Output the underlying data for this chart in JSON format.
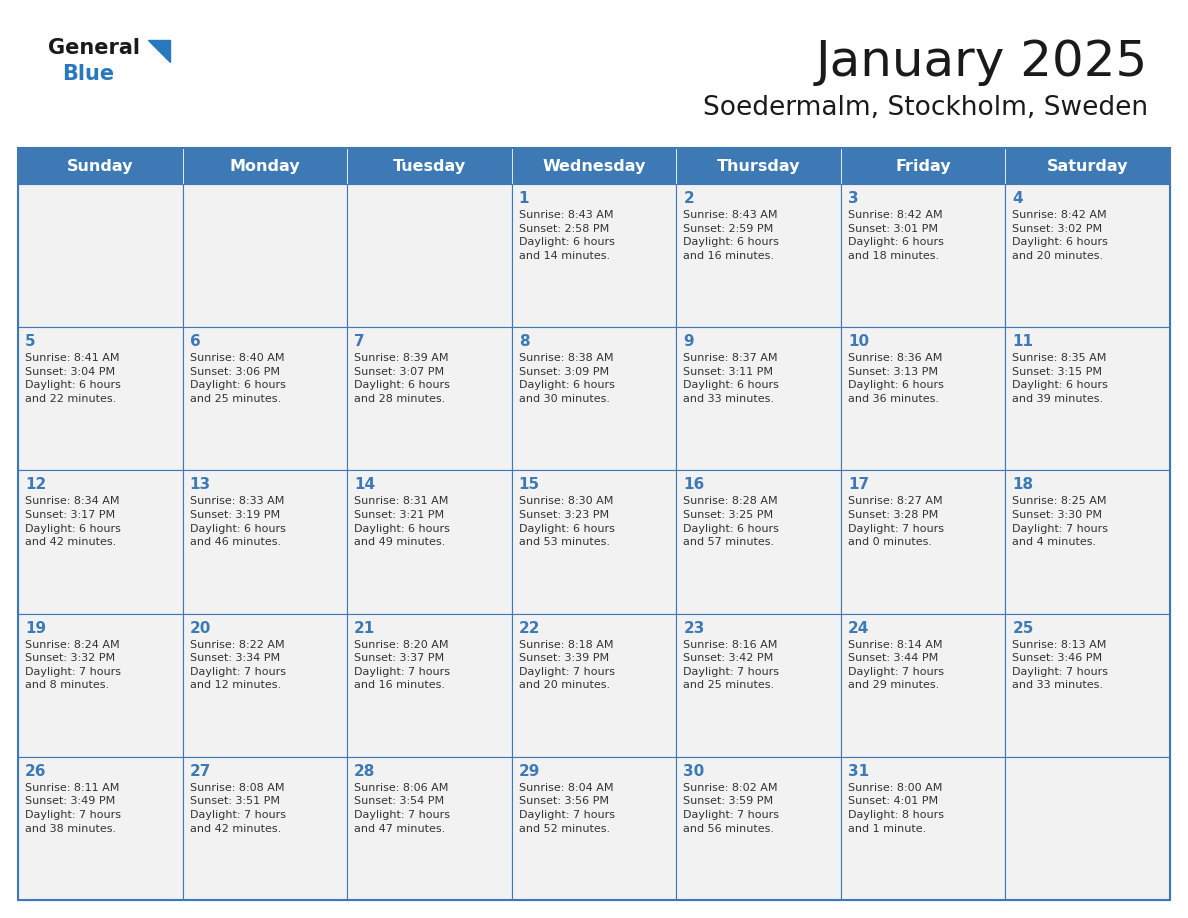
{
  "title": "January 2025",
  "subtitle": "Soedermalm, Stockholm, Sweden",
  "days_of_week": [
    "Sunday",
    "Monday",
    "Tuesday",
    "Wednesday",
    "Thursday",
    "Friday",
    "Saturday"
  ],
  "header_bg": "#3d7ab5",
  "header_text": "#ffffff",
  "cell_bg": "#f2f2f2",
  "grid_line_color": "#3d7ab5",
  "day_number_color": "#3d7ab5",
  "cell_text_color": "#333333",
  "title_color": "#1a1a1a",
  "logo_general_color": "#1a1a1a",
  "logo_blue_color": "#2878be",
  "weeks": [
    {
      "days": [
        {
          "date": null,
          "info": null
        },
        {
          "date": null,
          "info": null
        },
        {
          "date": null,
          "info": null
        },
        {
          "date": 1,
          "info": "Sunrise: 8:43 AM\nSunset: 2:58 PM\nDaylight: 6 hours\nand 14 minutes."
        },
        {
          "date": 2,
          "info": "Sunrise: 8:43 AM\nSunset: 2:59 PM\nDaylight: 6 hours\nand 16 minutes."
        },
        {
          "date": 3,
          "info": "Sunrise: 8:42 AM\nSunset: 3:01 PM\nDaylight: 6 hours\nand 18 minutes."
        },
        {
          "date": 4,
          "info": "Sunrise: 8:42 AM\nSunset: 3:02 PM\nDaylight: 6 hours\nand 20 minutes."
        }
      ]
    },
    {
      "days": [
        {
          "date": 5,
          "info": "Sunrise: 8:41 AM\nSunset: 3:04 PM\nDaylight: 6 hours\nand 22 minutes."
        },
        {
          "date": 6,
          "info": "Sunrise: 8:40 AM\nSunset: 3:06 PM\nDaylight: 6 hours\nand 25 minutes."
        },
        {
          "date": 7,
          "info": "Sunrise: 8:39 AM\nSunset: 3:07 PM\nDaylight: 6 hours\nand 28 minutes."
        },
        {
          "date": 8,
          "info": "Sunrise: 8:38 AM\nSunset: 3:09 PM\nDaylight: 6 hours\nand 30 minutes."
        },
        {
          "date": 9,
          "info": "Sunrise: 8:37 AM\nSunset: 3:11 PM\nDaylight: 6 hours\nand 33 minutes."
        },
        {
          "date": 10,
          "info": "Sunrise: 8:36 AM\nSunset: 3:13 PM\nDaylight: 6 hours\nand 36 minutes."
        },
        {
          "date": 11,
          "info": "Sunrise: 8:35 AM\nSunset: 3:15 PM\nDaylight: 6 hours\nand 39 minutes."
        }
      ]
    },
    {
      "days": [
        {
          "date": 12,
          "info": "Sunrise: 8:34 AM\nSunset: 3:17 PM\nDaylight: 6 hours\nand 42 minutes."
        },
        {
          "date": 13,
          "info": "Sunrise: 8:33 AM\nSunset: 3:19 PM\nDaylight: 6 hours\nand 46 minutes."
        },
        {
          "date": 14,
          "info": "Sunrise: 8:31 AM\nSunset: 3:21 PM\nDaylight: 6 hours\nand 49 minutes."
        },
        {
          "date": 15,
          "info": "Sunrise: 8:30 AM\nSunset: 3:23 PM\nDaylight: 6 hours\nand 53 minutes."
        },
        {
          "date": 16,
          "info": "Sunrise: 8:28 AM\nSunset: 3:25 PM\nDaylight: 6 hours\nand 57 minutes."
        },
        {
          "date": 17,
          "info": "Sunrise: 8:27 AM\nSunset: 3:28 PM\nDaylight: 7 hours\nand 0 minutes."
        },
        {
          "date": 18,
          "info": "Sunrise: 8:25 AM\nSunset: 3:30 PM\nDaylight: 7 hours\nand 4 minutes."
        }
      ]
    },
    {
      "days": [
        {
          "date": 19,
          "info": "Sunrise: 8:24 AM\nSunset: 3:32 PM\nDaylight: 7 hours\nand 8 minutes."
        },
        {
          "date": 20,
          "info": "Sunrise: 8:22 AM\nSunset: 3:34 PM\nDaylight: 7 hours\nand 12 minutes."
        },
        {
          "date": 21,
          "info": "Sunrise: 8:20 AM\nSunset: 3:37 PM\nDaylight: 7 hours\nand 16 minutes."
        },
        {
          "date": 22,
          "info": "Sunrise: 8:18 AM\nSunset: 3:39 PM\nDaylight: 7 hours\nand 20 minutes."
        },
        {
          "date": 23,
          "info": "Sunrise: 8:16 AM\nSunset: 3:42 PM\nDaylight: 7 hours\nand 25 minutes."
        },
        {
          "date": 24,
          "info": "Sunrise: 8:14 AM\nSunset: 3:44 PM\nDaylight: 7 hours\nand 29 minutes."
        },
        {
          "date": 25,
          "info": "Sunrise: 8:13 AM\nSunset: 3:46 PM\nDaylight: 7 hours\nand 33 minutes."
        }
      ]
    },
    {
      "days": [
        {
          "date": 26,
          "info": "Sunrise: 8:11 AM\nSunset: 3:49 PM\nDaylight: 7 hours\nand 38 minutes."
        },
        {
          "date": 27,
          "info": "Sunrise: 8:08 AM\nSunset: 3:51 PM\nDaylight: 7 hours\nand 42 minutes."
        },
        {
          "date": 28,
          "info": "Sunrise: 8:06 AM\nSunset: 3:54 PM\nDaylight: 7 hours\nand 47 minutes."
        },
        {
          "date": 29,
          "info": "Sunrise: 8:04 AM\nSunset: 3:56 PM\nDaylight: 7 hours\nand 52 minutes."
        },
        {
          "date": 30,
          "info": "Sunrise: 8:02 AM\nSunset: 3:59 PM\nDaylight: 7 hours\nand 56 minutes."
        },
        {
          "date": 31,
          "info": "Sunrise: 8:00 AM\nSunset: 4:01 PM\nDaylight: 8 hours\nand 1 minute."
        },
        {
          "date": null,
          "info": null
        }
      ]
    }
  ],
  "fig_width": 11.88,
  "fig_height": 9.18,
  "dpi": 100
}
